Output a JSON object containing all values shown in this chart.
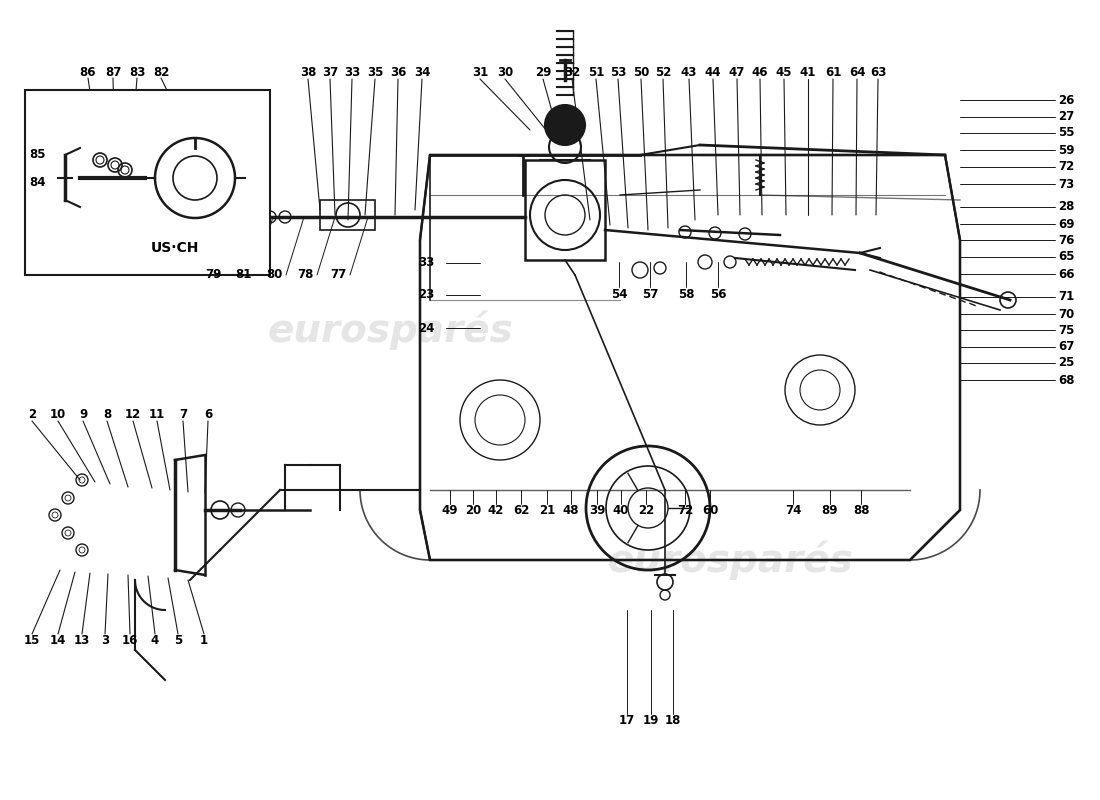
{
  "background_color": "#ffffff",
  "line_color": "#1a1a1a",
  "text_color": "#000000",
  "watermark_color": "#d0d0d0",
  "fig_width": 11.0,
  "fig_height": 8.0,
  "dpi": 100,
  "top_numbers_row1": [
    [
      "38",
      308,
      73
    ],
    [
      "37",
      330,
      73
    ],
    [
      "33",
      352,
      73
    ],
    [
      "35",
      375,
      73
    ],
    [
      "36",
      398,
      73
    ],
    [
      "34",
      422,
      73
    ],
    [
      "31",
      480,
      73
    ],
    [
      "30",
      505,
      73
    ],
    [
      "29",
      543,
      73
    ],
    [
      "32",
      572,
      73
    ],
    [
      "51",
      596,
      73
    ],
    [
      "53",
      618,
      73
    ],
    [
      "50",
      641,
      73
    ],
    [
      "52",
      663,
      73
    ],
    [
      "43",
      689,
      73
    ],
    [
      "44",
      713,
      73
    ],
    [
      "47",
      737,
      73
    ],
    [
      "46",
      760,
      73
    ],
    [
      "45",
      784,
      73
    ],
    [
      "41",
      808,
      73
    ],
    [
      "61",
      833,
      73
    ],
    [
      "64",
      857,
      73
    ],
    [
      "63",
      878,
      73
    ]
  ],
  "right_col": [
    [
      "26",
      1058,
      100
    ],
    [
      "27",
      1058,
      117
    ],
    [
      "55",
      1058,
      133
    ],
    [
      "59",
      1058,
      150
    ],
    [
      "72",
      1058,
      167
    ],
    [
      "73",
      1058,
      184
    ],
    [
      "28",
      1058,
      207
    ],
    [
      "69",
      1058,
      224
    ],
    [
      "76",
      1058,
      240
    ],
    [
      "65",
      1058,
      257
    ],
    [
      "66",
      1058,
      274
    ],
    [
      "71",
      1058,
      297
    ],
    [
      "70",
      1058,
      314
    ],
    [
      "75",
      1058,
      330
    ],
    [
      "67",
      1058,
      347
    ],
    [
      "25",
      1058,
      363
    ],
    [
      "68",
      1058,
      380
    ]
  ],
  "bottom_row": [
    [
      "49",
      450,
      510
    ],
    [
      "20",
      473,
      510
    ],
    [
      "42",
      496,
      510
    ],
    [
      "62",
      521,
      510
    ],
    [
      "21",
      547,
      510
    ],
    [
      "48",
      571,
      510
    ],
    [
      "39",
      597,
      510
    ],
    [
      "40",
      621,
      510
    ],
    [
      "22",
      646,
      510
    ],
    [
      "72",
      685,
      510
    ],
    [
      "60",
      710,
      510
    ],
    [
      "74",
      793,
      510
    ],
    [
      "89",
      830,
      510
    ],
    [
      "88",
      861,
      510
    ]
  ],
  "bottom_numbers": [
    [
      "17",
      627,
      720
    ],
    [
      "19",
      651,
      720
    ],
    [
      "18",
      673,
      720
    ]
  ],
  "inset_top_nums": [
    [
      "86",
      88,
      73
    ],
    [
      "87",
      113,
      73
    ],
    [
      "83",
      137,
      73
    ],
    [
      "82",
      161,
      73
    ]
  ],
  "inset_left_nums": [
    [
      "85",
      38,
      155
    ],
    [
      "84",
      38,
      183
    ]
  ],
  "center_left": [
    [
      "33",
      426,
      263
    ],
    [
      "23",
      426,
      295
    ],
    [
      "24",
      426,
      328
    ]
  ],
  "linkage_row": [
    [
      "79",
      213,
      275
    ],
    [
      "81",
      243,
      275
    ],
    [
      "80",
      274,
      275
    ],
    [
      "78",
      305,
      275
    ],
    [
      "77",
      338,
      275
    ]
  ],
  "middle_nums": [
    [
      "54",
      619,
      295
    ],
    [
      "57",
      650,
      295
    ],
    [
      "58",
      686,
      295
    ],
    [
      "56",
      718,
      295
    ]
  ],
  "left_top_nums": [
    [
      "2",
      32,
      415
    ],
    [
      "10",
      58,
      415
    ],
    [
      "9",
      83,
      415
    ],
    [
      "8",
      107,
      415
    ],
    [
      "12",
      133,
      415
    ],
    [
      "11",
      157,
      415
    ],
    [
      "7",
      183,
      415
    ],
    [
      "6",
      208,
      415
    ]
  ],
  "left_bot_nums": [
    [
      "15",
      32,
      640
    ],
    [
      "14",
      58,
      640
    ],
    [
      "13",
      82,
      640
    ],
    [
      "3",
      105,
      640
    ],
    [
      "16",
      130,
      640
    ],
    [
      "4",
      155,
      640
    ],
    [
      "5",
      178,
      640
    ],
    [
      "1",
      204,
      640
    ]
  ]
}
